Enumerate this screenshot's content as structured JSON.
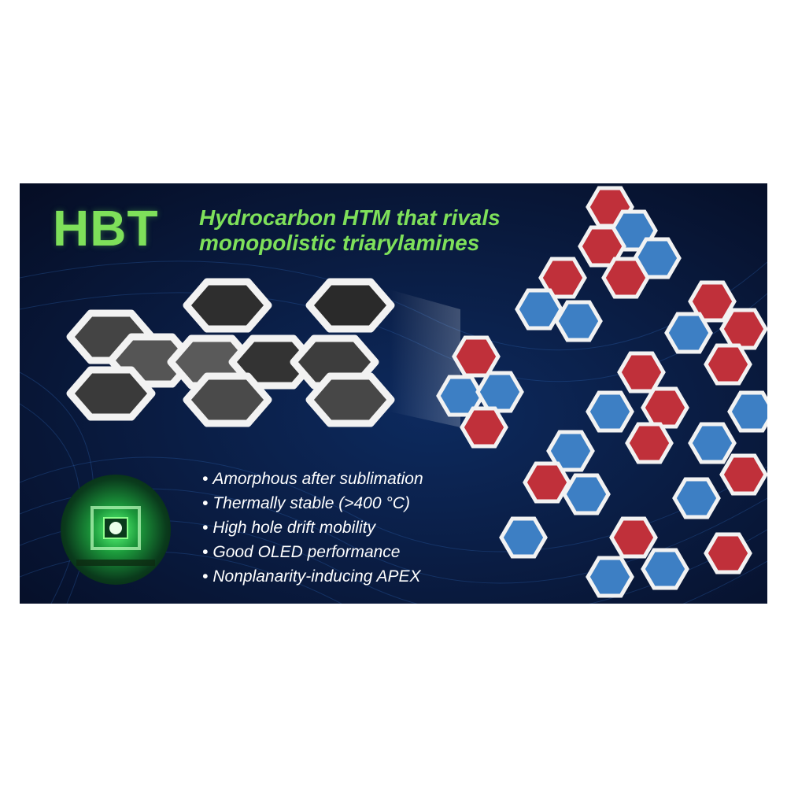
{
  "title": {
    "abbr": "HBT",
    "subtitle_line1": "Hydrocarbon HTM that rivals",
    "subtitle_line2": "monopolistic triarylamines"
  },
  "bullets": [
    "Amorphous after sublimation",
    "Thermally stable (>400 °C)",
    "High hole drift mobility",
    "Good OLED performance",
    "Nonplanarity-inducing APEX"
  ],
  "bullet_symbol": "•",
  "colors": {
    "accent_green": "#7ee05a",
    "background_navy": "#0a1d44",
    "hex_red": "#c0303a",
    "hex_blue": "#3d7fc4",
    "hex_frame": "#f2f2f2"
  },
  "icons": [
    "molecule-structure",
    "molecular-packing",
    "oled-device"
  ]
}
